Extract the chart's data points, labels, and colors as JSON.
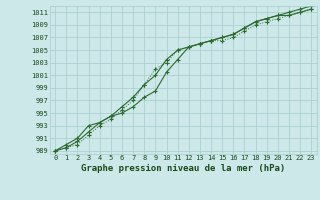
{
  "title": "Graphe pression niveau de la mer (hPa)",
  "xlabel_hours": [
    0,
    1,
    2,
    3,
    4,
    5,
    6,
    7,
    8,
    9,
    10,
    11,
    12,
    13,
    14,
    15,
    16,
    17,
    18,
    19,
    20,
    21,
    22,
    23
  ],
  "line1": [
    989.0,
    989.5,
    990.0,
    991.5,
    993.0,
    994.0,
    995.5,
    997.0,
    999.5,
    1002.0,
    1003.0,
    1005.0,
    1005.5,
    1006.0,
    1006.5,
    1006.5,
    1007.0,
    1008.0,
    1009.0,
    1009.5,
    1010.0,
    1010.5,
    1011.0,
    1011.5
  ],
  "line2": [
    989.0,
    989.5,
    990.5,
    992.0,
    993.5,
    994.5,
    996.0,
    997.5,
    999.5,
    1001.0,
    1003.5,
    1005.0,
    1005.5,
    1006.0,
    1006.5,
    1007.0,
    1007.5,
    1008.5,
    1009.5,
    1010.0,
    1010.5,
    1010.5,
    1011.0,
    1011.5
  ],
  "line3": [
    989.0,
    990.0,
    991.0,
    993.0,
    993.5,
    994.5,
    995.0,
    996.0,
    997.5,
    998.5,
    1001.5,
    1003.5,
    1005.5,
    1006.0,
    1006.5,
    1007.0,
    1007.5,
    1008.5,
    1009.5,
    1010.0,
    1010.5,
    1011.0,
    1011.5,
    1012.0
  ],
  "ylim": [
    988.5,
    1012.0
  ],
  "yticks": [
    989,
    991,
    993,
    995,
    997,
    999,
    1001,
    1003,
    1005,
    1007,
    1009,
    1011
  ],
  "line_color": "#2d6a2d",
  "bg_color": "#cce8e8",
  "grid_color": "#a8cccc",
  "title_color": "#1a4a1a",
  "title_fontsize": 6.5,
  "tick_fontsize": 5.0
}
